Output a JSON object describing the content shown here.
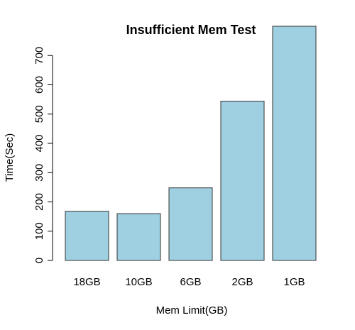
{
  "chart_data": {
    "type": "bar",
    "title": "Insufficient Mem Test",
    "xlabel": "Mem Limit(GB)",
    "ylabel": "Time(Sec)",
    "categories": [
      "18GB",
      "10GB",
      "6GB",
      "2GB",
      "1GB"
    ],
    "values": [
      168,
      160,
      248,
      544,
      800
    ],
    "ylim": [
      0,
      800
    ],
    "yticks": [
      0,
      100,
      200,
      300,
      400,
      500,
      600,
      700
    ],
    "ytick_labels": [
      "0",
      "100",
      "200",
      "300",
      "400",
      "500",
      "600",
      "700"
    ],
    "bar_color": "#9fd0e2",
    "bar_border_color": "#333333",
    "grid": false,
    "legend": "none"
  }
}
